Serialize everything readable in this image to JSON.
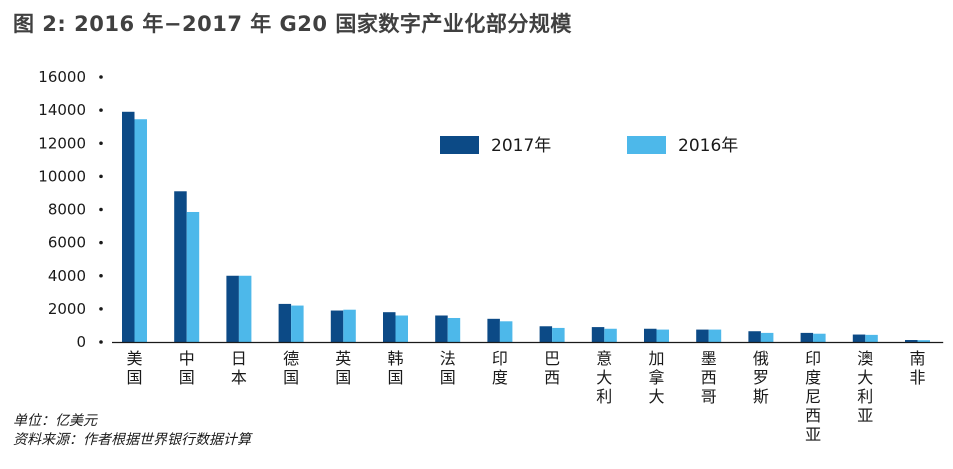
{
  "title": "图 2: 2016 年−2017 年 G20 国家数字产业化部分规模",
  "unit_note": "单位：亿美元",
  "source_note": "资料来源：作者根据世界银行数据计算",
  "colors": {
    "series_2017": "#0c4a86",
    "series_2016": "#4db8ea",
    "axis": "#1a1a1a"
  },
  "chart_data": {
    "type": "bar",
    "title": "图 2: 2016 年−2017 年 G20 国家数字产业化部分规模",
    "categories": [
      "美国",
      "中国",
      "日本",
      "德国",
      "英国",
      "韩国",
      "法国",
      "印度",
      "巴西",
      "意大利",
      "加拿大",
      "墨西哥",
      "俄罗斯",
      "印度尼西亚",
      "澳大利亚",
      "南非"
    ],
    "series": [
      {
        "name": "2017年",
        "values": [
          13900,
          9100,
          4000,
          2300,
          1900,
          1800,
          1600,
          1400,
          950,
          900,
          800,
          750,
          650,
          550,
          450,
          120
        ]
      },
      {
        "name": "2016年",
        "values": [
          13450,
          7850,
          4000,
          2200,
          1950,
          1600,
          1450,
          1250,
          850,
          800,
          750,
          750,
          550,
          500,
          430,
          110
        ]
      }
    ],
    "y_ticks": [
      "0",
      "2000",
      "4000",
      "6000",
      "8000",
      "10000",
      "12000",
      "14000",
      "16000"
    ],
    "ylim": [
      0,
      16000
    ],
    "xlabel": "",
    "ylabel": "",
    "legend_position": "top-right",
    "grid": false
  }
}
